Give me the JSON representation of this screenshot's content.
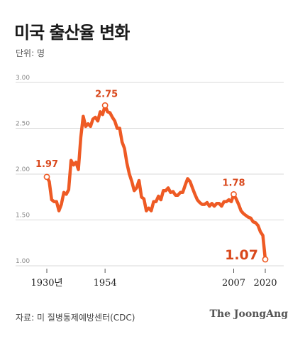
{
  "header": {
    "title": "미국 출산율 변화",
    "unit": "단위: 명"
  },
  "footer": {
    "source": "자료: 미 질병통제예방센터(CDC)",
    "brand": "The JoongAng"
  },
  "chart_data": {
    "type": "line",
    "title": "미국 출산율 변화",
    "xlabel": "",
    "ylabel": "",
    "xlim": [
      1930,
      2020
    ],
    "ylim": [
      1.0,
      3.0
    ],
    "yticks": [
      "1.00",
      "1.50",
      "2.00",
      "2.50",
      "3.00"
    ],
    "xticks": [
      {
        "x": 1930,
        "label": "1930년"
      },
      {
        "x": 1954,
        "label": "1954"
      },
      {
        "x": 2007,
        "label": "2007"
      },
      {
        "x": 2020,
        "label": "2020"
      }
    ],
    "grid": true,
    "color": "#ee5a24",
    "series": [
      {
        "values": [
          [
            1930,
            1.97
          ],
          [
            1931,
            1.92
          ],
          [
            1932,
            1.72
          ],
          [
            1933,
            1.7
          ],
          [
            1934,
            1.7
          ],
          [
            1935,
            1.6
          ],
          [
            1936,
            1.67
          ],
          [
            1937,
            1.8
          ],
          [
            1938,
            1.78
          ],
          [
            1939,
            1.83
          ],
          [
            1940,
            2.15
          ],
          [
            1941,
            2.1
          ],
          [
            1942,
            2.13
          ],
          [
            1943,
            2.05
          ],
          [
            1944,
            2.4
          ],
          [
            1945,
            2.63
          ],
          [
            1946,
            2.52
          ],
          [
            1947,
            2.55
          ],
          [
            1948,
            2.52
          ],
          [
            1949,
            2.6
          ],
          [
            1950,
            2.62
          ],
          [
            1951,
            2.58
          ],
          [
            1952,
            2.68
          ],
          [
            1953,
            2.65
          ],
          [
            1954,
            2.75
          ],
          [
            1955,
            2.68
          ],
          [
            1956,
            2.67
          ],
          [
            1957,
            2.62
          ],
          [
            1958,
            2.58
          ],
          [
            1959,
            2.5
          ],
          [
            1960,
            2.5
          ],
          [
            1961,
            2.35
          ],
          [
            1962,
            2.28
          ],
          [
            1963,
            2.12
          ],
          [
            1964,
            2.0
          ],
          [
            1965,
            1.92
          ],
          [
            1966,
            1.82
          ],
          [
            1967,
            1.85
          ],
          [
            1968,
            1.93
          ],
          [
            1969,
            1.75
          ],
          [
            1970,
            1.73
          ],
          [
            1971,
            1.6
          ],
          [
            1972,
            1.63
          ],
          [
            1973,
            1.6
          ],
          [
            1974,
            1.7
          ],
          [
            1975,
            1.7
          ],
          [
            1976,
            1.76
          ],
          [
            1977,
            1.72
          ],
          [
            1978,
            1.82
          ],
          [
            1979,
            1.82
          ],
          [
            1980,
            1.85
          ],
          [
            1981,
            1.8
          ],
          [
            1982,
            1.81
          ],
          [
            1983,
            1.77
          ],
          [
            1984,
            1.77
          ],
          [
            1985,
            1.8
          ],
          [
            1986,
            1.8
          ],
          [
            1987,
            1.88
          ],
          [
            1988,
            1.95
          ],
          [
            1989,
            1.92
          ],
          [
            1990,
            1.85
          ],
          [
            1991,
            1.78
          ],
          [
            1992,
            1.72
          ],
          [
            1993,
            1.69
          ],
          [
            1994,
            1.67
          ],
          [
            1995,
            1.67
          ],
          [
            1996,
            1.69
          ],
          [
            1997,
            1.65
          ],
          [
            1998,
            1.68
          ],
          [
            1999,
            1.65
          ],
          [
            2000,
            1.68
          ],
          [
            2001,
            1.68
          ],
          [
            2002,
            1.65
          ],
          [
            2003,
            1.7
          ],
          [
            2004,
            1.7
          ],
          [
            2005,
            1.72
          ],
          [
            2006,
            1.7
          ],
          [
            2007,
            1.78
          ],
          [
            2008,
            1.73
          ],
          [
            2009,
            1.67
          ],
          [
            2010,
            1.6
          ],
          [
            2011,
            1.57
          ],
          [
            2012,
            1.55
          ],
          [
            2013,
            1.53
          ],
          [
            2014,
            1.52
          ],
          [
            2015,
            1.48
          ],
          [
            2016,
            1.47
          ],
          [
            2017,
            1.44
          ],
          [
            2018,
            1.37
          ],
          [
            2019,
            1.33
          ],
          [
            2020,
            1.07
          ]
        ]
      }
    ],
    "annotations": [
      {
        "x": 1930,
        "y": 1.97,
        "label": "1.97"
      },
      {
        "x": 1954,
        "y": 2.75,
        "label": "2.75"
      },
      {
        "x": 2007,
        "y": 1.78,
        "label": "1.78"
      },
      {
        "x": 2020,
        "y": 1.07,
        "label": "1.07"
      }
    ]
  }
}
